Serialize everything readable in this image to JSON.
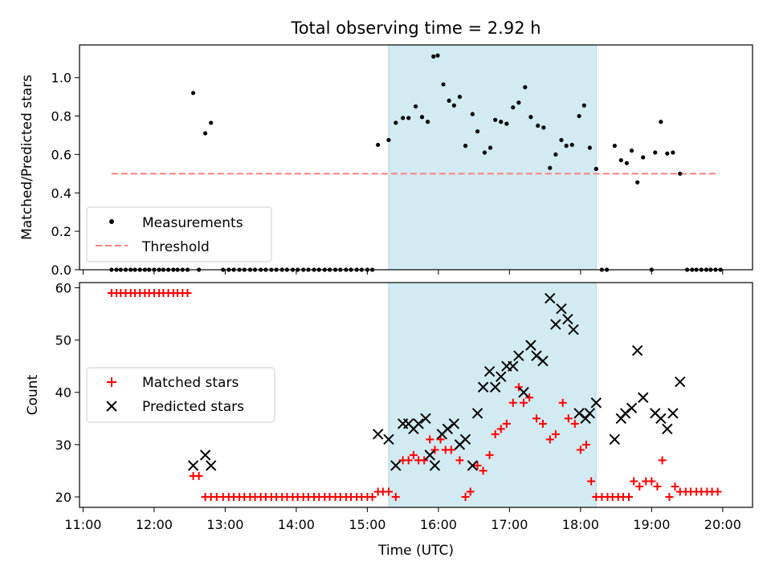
{
  "chart_data": [
    {
      "type": "scatter",
      "title": "Total observing time = 2.92 h",
      "ylabel": "Matched/Predicted stars",
      "xlim": [
        10.95,
        20.42
      ],
      "ylim": [
        0,
        1.17
      ],
      "yticks": [
        0.0,
        0.2,
        0.4,
        0.6,
        0.8,
        1.0
      ],
      "ytick_labels": [
        "0.0",
        "0.2",
        "0.4",
        "0.6",
        "0.8",
        "1.0"
      ],
      "shaded_span": [
        15.3,
        18.22
      ],
      "shaded_color": "#add8e6",
      "legend": {
        "position": "lower-left",
        "entries": [
          {
            "label": "Measurements",
            "marker": "dot",
            "color": "#000000"
          },
          {
            "label": "Threshold",
            "marker": "dashed-line",
            "color": "#ff7f7f"
          }
        ]
      },
      "threshold": {
        "value": 0.5,
        "x_range": [
          11.4,
          19.95
        ],
        "color": "#ff7f7f"
      },
      "zeros_x": [
        11.4,
        11.47,
        11.53,
        11.6,
        11.67,
        11.73,
        11.8,
        11.87,
        11.93,
        12.0,
        12.07,
        12.13,
        12.2,
        12.27,
        12.33,
        12.4,
        12.47,
        12.63,
        12.97,
        13.05,
        13.12,
        13.2,
        13.27,
        13.35,
        13.42,
        13.5,
        13.57,
        13.65,
        13.72,
        13.8,
        13.87,
        13.95,
        14.02,
        14.1,
        14.17,
        14.25,
        14.32,
        14.4,
        14.47,
        14.55,
        14.62,
        14.7,
        14.77,
        14.85,
        14.92,
        15.0,
        15.07,
        18.3,
        18.37,
        19.0,
        19.5,
        19.57,
        19.63,
        19.7,
        19.77,
        19.83,
        19.9,
        19.97
      ],
      "points": [
        [
          12.55,
          0.92
        ],
        [
          12.72,
          0.71
        ],
        [
          12.8,
          0.765
        ],
        [
          15.15,
          0.65
        ],
        [
          15.3,
          0.675
        ],
        [
          15.4,
          0.765
        ],
        [
          15.5,
          0.79
        ],
        [
          15.58,
          0.79
        ],
        [
          15.68,
          0.85
        ],
        [
          15.77,
          0.795
        ],
        [
          15.85,
          0.77
        ],
        [
          15.93,
          1.11
        ],
        [
          15.99,
          1.115
        ],
        [
          16.07,
          0.965
        ],
        [
          16.15,
          0.88
        ],
        [
          16.22,
          0.855
        ],
        [
          16.3,
          0.9
        ],
        [
          16.38,
          0.645
        ],
        [
          16.48,
          0.81
        ],
        [
          16.55,
          0.72
        ],
        [
          16.65,
          0.61
        ],
        [
          16.73,
          0.635
        ],
        [
          16.8,
          0.78
        ],
        [
          16.88,
          0.77
        ],
        [
          16.96,
          0.76
        ],
        [
          17.05,
          0.845
        ],
        [
          17.13,
          0.87
        ],
        [
          17.22,
          0.95
        ],
        [
          17.3,
          0.795
        ],
        [
          17.4,
          0.75
        ],
        [
          17.48,
          0.74
        ],
        [
          17.57,
          0.53
        ],
        [
          17.65,
          0.6
        ],
        [
          17.73,
          0.675
        ],
        [
          17.8,
          0.645
        ],
        [
          17.88,
          0.65
        ],
        [
          17.98,
          0.8
        ],
        [
          18.05,
          0.855
        ],
        [
          18.13,
          0.635
        ],
        [
          18.22,
          0.525
        ],
        [
          18.48,
          0.645
        ],
        [
          18.57,
          0.57
        ],
        [
          18.65,
          0.555
        ],
        [
          18.72,
          0.62
        ],
        [
          18.8,
          0.455
        ],
        [
          18.88,
          0.585
        ],
        [
          19.05,
          0.61
        ],
        [
          19.13,
          0.77
        ],
        [
          19.22,
          0.605
        ],
        [
          19.3,
          0.61
        ],
        [
          19.4,
          0.5
        ]
      ]
    },
    {
      "type": "scatter",
      "xlabel": "Time (UTC)",
      "ylabel": "Count",
      "xlim": [
        10.95,
        20.42
      ],
      "ylim": [
        18,
        61
      ],
      "xticks": [
        11,
        12,
        13,
        14,
        15,
        16,
        17,
        18,
        19,
        20
      ],
      "xtick_labels": [
        "11:00",
        "12:00",
        "13:00",
        "14:00",
        "15:00",
        "16:00",
        "17:00",
        "18:00",
        "19:00",
        "20:00"
      ],
      "yticks": [
        20,
        30,
        40,
        50,
        60
      ],
      "ytick_labels": [
        "20",
        "30",
        "40",
        "50",
        "60"
      ],
      "shaded_span": [
        15.3,
        18.22
      ],
      "shaded_color": "#add8e6",
      "legend": {
        "position": "center-left",
        "entries": [
          {
            "label": "Matched stars",
            "marker": "plus",
            "color": "#ff0000"
          },
          {
            "label": "Predicted stars",
            "marker": "x",
            "color": "#000000"
          }
        ]
      },
      "series": [
        {
          "name": "Matched stars",
          "marker": "plus",
          "color": "#ff0000",
          "points": [
            [
              11.4,
              59
            ],
            [
              11.47,
              59
            ],
            [
              11.53,
              59
            ],
            [
              11.6,
              59
            ],
            [
              11.67,
              59
            ],
            [
              11.73,
              59
            ],
            [
              11.8,
              59
            ],
            [
              11.87,
              59
            ],
            [
              11.93,
              59
            ],
            [
              12.0,
              59
            ],
            [
              12.07,
              59
            ],
            [
              12.13,
              59
            ],
            [
              12.2,
              59
            ],
            [
              12.27,
              59
            ],
            [
              12.33,
              59
            ],
            [
              12.4,
              59
            ],
            [
              12.47,
              59
            ],
            [
              12.55,
              24
            ],
            [
              12.63,
              24
            ],
            [
              12.72,
              20
            ],
            [
              12.8,
              20
            ],
            [
              12.88,
              20
            ],
            [
              12.97,
              20
            ],
            [
              13.05,
              20
            ],
            [
              13.12,
              20
            ],
            [
              13.2,
              20
            ],
            [
              13.27,
              20
            ],
            [
              13.35,
              20
            ],
            [
              13.42,
              20
            ],
            [
              13.5,
              20
            ],
            [
              13.57,
              20
            ],
            [
              13.65,
              20
            ],
            [
              13.72,
              20
            ],
            [
              13.8,
              20
            ],
            [
              13.87,
              20
            ],
            [
              13.95,
              20
            ],
            [
              14.02,
              20
            ],
            [
              14.1,
              20
            ],
            [
              14.17,
              20
            ],
            [
              14.25,
              20
            ],
            [
              14.32,
              20
            ],
            [
              14.4,
              20
            ],
            [
              14.47,
              20
            ],
            [
              14.55,
              20
            ],
            [
              14.62,
              20
            ],
            [
              14.7,
              20
            ],
            [
              14.77,
              20
            ],
            [
              14.85,
              20
            ],
            [
              14.92,
              20
            ],
            [
              15.0,
              20
            ],
            [
              15.07,
              20
            ],
            [
              15.15,
              21
            ],
            [
              15.22,
              21
            ],
            [
              15.3,
              21
            ],
            [
              15.4,
              20
            ],
            [
              15.5,
              27
            ],
            [
              15.58,
              27
            ],
            [
              15.65,
              28
            ],
            [
              15.72,
              27
            ],
            [
              15.8,
              27
            ],
            [
              15.88,
              31
            ],
            [
              15.95,
              29
            ],
            [
              16.03,
              31
            ],
            [
              16.1,
              29
            ],
            [
              16.18,
              29
            ],
            [
              16.3,
              27
            ],
            [
              16.38,
              20
            ],
            [
              16.45,
              21
            ],
            [
              16.55,
              26
            ],
            [
              16.63,
              25
            ],
            [
              16.72,
              28
            ],
            [
              16.8,
              32
            ],
            [
              16.88,
              33
            ],
            [
              16.96,
              34
            ],
            [
              17.05,
              38
            ],
            [
              17.13,
              41
            ],
            [
              17.2,
              38
            ],
            [
              17.28,
              39
            ],
            [
              17.38,
              35
            ],
            [
              17.47,
              34
            ],
            [
              17.57,
              31
            ],
            [
              17.65,
              32
            ],
            [
              17.75,
              38
            ],
            [
              17.83,
              35
            ],
            [
              17.92,
              34
            ],
            [
              18.0,
              29
            ],
            [
              18.08,
              30
            ],
            [
              18.15,
              23
            ],
            [
              18.22,
              20
            ],
            [
              18.3,
              20
            ],
            [
              18.38,
              20
            ],
            [
              18.45,
              20
            ],
            [
              18.53,
              20
            ],
            [
              18.6,
              20
            ],
            [
              18.68,
              20
            ],
            [
              18.75,
              23
            ],
            [
              18.83,
              22
            ],
            [
              18.92,
              23
            ],
            [
              19.0,
              23
            ],
            [
              19.08,
              22
            ],
            [
              19.15,
              27
            ],
            [
              19.25,
              20
            ],
            [
              19.33,
              22
            ],
            [
              19.4,
              21
            ],
            [
              19.48,
              21
            ],
            [
              19.55,
              21
            ],
            [
              19.63,
              21
            ],
            [
              19.7,
              21
            ],
            [
              19.78,
              21
            ],
            [
              19.85,
              21
            ],
            [
              19.93,
              21
            ]
          ]
        },
        {
          "name": "Predicted stars",
          "marker": "x",
          "color": "#000000",
          "points": [
            [
              12.55,
              26
            ],
            [
              12.72,
              28
            ],
            [
              12.8,
              26
            ],
            [
              15.15,
              32
            ],
            [
              15.3,
              31
            ],
            [
              15.4,
              26
            ],
            [
              15.5,
              34
            ],
            [
              15.58,
              34
            ],
            [
              15.65,
              33
            ],
            [
              15.72,
              34
            ],
            [
              15.82,
              35
            ],
            [
              15.88,
              28
            ],
            [
              15.95,
              26
            ],
            [
              16.05,
              32
            ],
            [
              16.13,
              33
            ],
            [
              16.22,
              34
            ],
            [
              16.3,
              30
            ],
            [
              16.38,
              31
            ],
            [
              16.48,
              26
            ],
            [
              16.55,
              36
            ],
            [
              16.63,
              41
            ],
            [
              16.72,
              44
            ],
            [
              16.8,
              41
            ],
            [
              16.88,
              43
            ],
            [
              16.96,
              45
            ],
            [
              17.05,
              45
            ],
            [
              17.13,
              47
            ],
            [
              17.2,
              40
            ],
            [
              17.3,
              49
            ],
            [
              17.38,
              47
            ],
            [
              17.47,
              46
            ],
            [
              17.57,
              58
            ],
            [
              17.65,
              53
            ],
            [
              17.73,
              56
            ],
            [
              17.82,
              54
            ],
            [
              17.9,
              52
            ],
            [
              17.98,
              36
            ],
            [
              18.07,
              35
            ],
            [
              18.13,
              36
            ],
            [
              18.22,
              38
            ],
            [
              18.48,
              31
            ],
            [
              18.57,
              35
            ],
            [
              18.63,
              36
            ],
            [
              18.72,
              37
            ],
            [
              18.8,
              48
            ],
            [
              18.88,
              39
            ],
            [
              19.05,
              36
            ],
            [
              19.13,
              35
            ],
            [
              19.22,
              33
            ],
            [
              19.3,
              36
            ],
            [
              19.4,
              42
            ]
          ]
        }
      ]
    }
  ]
}
